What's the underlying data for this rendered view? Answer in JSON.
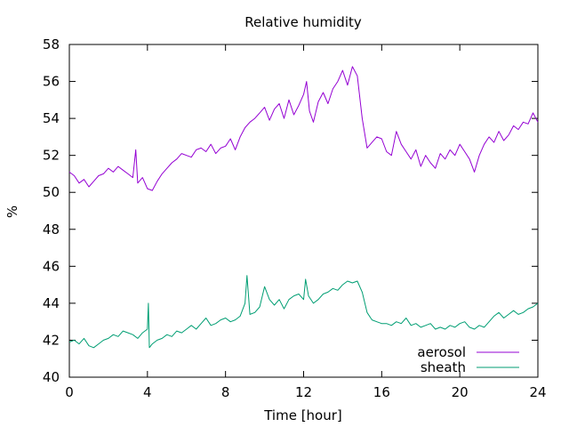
{
  "chart_data": {
    "type": "line",
    "title": "Relative humidity",
    "xlabel": "Time [hour]",
    "ylabel": "%",
    "xlim": [
      0,
      24
    ],
    "ylim": [
      40,
      58
    ],
    "x_ticks": [
      0,
      4,
      8,
      12,
      16,
      20,
      24
    ],
    "y_ticks": [
      40,
      42,
      44,
      46,
      48,
      50,
      52,
      54,
      56,
      58
    ],
    "grid": false,
    "legend_position": "bottom-right",
    "series": [
      {
        "name": "aerosol",
        "color": "#9400d3",
        "points": [
          [
            0.0,
            51.1
          ],
          [
            0.25,
            50.9
          ],
          [
            0.5,
            50.5
          ],
          [
            0.75,
            50.7
          ],
          [
            1.0,
            50.3
          ],
          [
            1.25,
            50.6
          ],
          [
            1.5,
            50.9
          ],
          [
            1.75,
            51.0
          ],
          [
            2.0,
            51.3
          ],
          [
            2.25,
            51.1
          ],
          [
            2.5,
            51.4
          ],
          [
            2.75,
            51.2
          ],
          [
            3.0,
            51.0
          ],
          [
            3.25,
            50.8
          ],
          [
            3.4,
            52.3
          ],
          [
            3.5,
            50.5
          ],
          [
            3.75,
            50.8
          ],
          [
            4.0,
            50.2
          ],
          [
            4.25,
            50.1
          ],
          [
            4.5,
            50.6
          ],
          [
            4.75,
            51.0
          ],
          [
            5.0,
            51.3
          ],
          [
            5.25,
            51.6
          ],
          [
            5.5,
            51.8
          ],
          [
            5.75,
            52.1
          ],
          [
            6.0,
            52.0
          ],
          [
            6.25,
            51.9
          ],
          [
            6.5,
            52.3
          ],
          [
            6.75,
            52.4
          ],
          [
            7.0,
            52.2
          ],
          [
            7.25,
            52.6
          ],
          [
            7.5,
            52.1
          ],
          [
            7.75,
            52.4
          ],
          [
            8.0,
            52.5
          ],
          [
            8.25,
            52.9
          ],
          [
            8.5,
            52.3
          ],
          [
            8.75,
            53.0
          ],
          [
            9.0,
            53.5
          ],
          [
            9.25,
            53.8
          ],
          [
            9.5,
            54.0
          ],
          [
            9.75,
            54.3
          ],
          [
            10.0,
            54.6
          ],
          [
            10.25,
            53.9
          ],
          [
            10.5,
            54.5
          ],
          [
            10.75,
            54.8
          ],
          [
            11.0,
            54.0
          ],
          [
            11.25,
            55.0
          ],
          [
            11.5,
            54.2
          ],
          [
            11.75,
            54.7
          ],
          [
            12.0,
            55.3
          ],
          [
            12.15,
            56.0
          ],
          [
            12.3,
            54.4
          ],
          [
            12.5,
            53.8
          ],
          [
            12.75,
            54.9
          ],
          [
            13.0,
            55.4
          ],
          [
            13.25,
            54.8
          ],
          [
            13.5,
            55.6
          ],
          [
            13.75,
            56.0
          ],
          [
            14.0,
            56.6
          ],
          [
            14.25,
            55.8
          ],
          [
            14.5,
            56.8
          ],
          [
            14.75,
            56.3
          ],
          [
            15.0,
            54.0
          ],
          [
            15.25,
            52.4
          ],
          [
            15.5,
            52.7
          ],
          [
            15.75,
            53.0
          ],
          [
            16.0,
            52.9
          ],
          [
            16.25,
            52.2
          ],
          [
            16.5,
            52.0
          ],
          [
            16.75,
            53.3
          ],
          [
            17.0,
            52.6
          ],
          [
            17.25,
            52.2
          ],
          [
            17.5,
            51.8
          ],
          [
            17.75,
            52.3
          ],
          [
            18.0,
            51.4
          ],
          [
            18.25,
            52.0
          ],
          [
            18.5,
            51.6
          ],
          [
            18.75,
            51.3
          ],
          [
            19.0,
            52.1
          ],
          [
            19.25,
            51.8
          ],
          [
            19.5,
            52.3
          ],
          [
            19.75,
            52.0
          ],
          [
            20.0,
            52.6
          ],
          [
            20.25,
            52.2
          ],
          [
            20.5,
            51.8
          ],
          [
            20.75,
            51.1
          ],
          [
            21.0,
            52.0
          ],
          [
            21.25,
            52.6
          ],
          [
            21.5,
            53.0
          ],
          [
            21.75,
            52.7
          ],
          [
            22.0,
            53.3
          ],
          [
            22.25,
            52.8
          ],
          [
            22.5,
            53.1
          ],
          [
            22.75,
            53.6
          ],
          [
            23.0,
            53.4
          ],
          [
            23.25,
            53.8
          ],
          [
            23.5,
            53.7
          ],
          [
            23.75,
            54.3
          ],
          [
            24.0,
            53.8
          ]
        ]
      },
      {
        "name": "sheath",
        "color": "#009e73",
        "points": [
          [
            0.0,
            41.9
          ],
          [
            0.25,
            42.0
          ],
          [
            0.5,
            41.8
          ],
          [
            0.75,
            42.1
          ],
          [
            1.0,
            41.7
          ],
          [
            1.25,
            41.6
          ],
          [
            1.5,
            41.8
          ],
          [
            1.75,
            42.0
          ],
          [
            2.0,
            42.1
          ],
          [
            2.25,
            42.3
          ],
          [
            2.5,
            42.2
          ],
          [
            2.75,
            42.5
          ],
          [
            3.0,
            42.4
          ],
          [
            3.25,
            42.3
          ],
          [
            3.5,
            42.1
          ],
          [
            3.75,
            42.4
          ],
          [
            4.0,
            42.6
          ],
          [
            4.05,
            44.0
          ],
          [
            4.1,
            41.6
          ],
          [
            4.25,
            41.8
          ],
          [
            4.5,
            42.0
          ],
          [
            4.75,
            42.1
          ],
          [
            5.0,
            42.3
          ],
          [
            5.25,
            42.2
          ],
          [
            5.5,
            42.5
          ],
          [
            5.75,
            42.4
          ],
          [
            6.0,
            42.6
          ],
          [
            6.25,
            42.8
          ],
          [
            6.5,
            42.6
          ],
          [
            6.75,
            42.9
          ],
          [
            7.0,
            43.2
          ],
          [
            7.25,
            42.8
          ],
          [
            7.5,
            42.9
          ],
          [
            7.75,
            43.1
          ],
          [
            8.0,
            43.2
          ],
          [
            8.25,
            43.0
          ],
          [
            8.5,
            43.1
          ],
          [
            8.75,
            43.3
          ],
          [
            9.0,
            44.0
          ],
          [
            9.1,
            45.5
          ],
          [
            9.25,
            43.4
          ],
          [
            9.5,
            43.5
          ],
          [
            9.75,
            43.8
          ],
          [
            10.0,
            44.9
          ],
          [
            10.25,
            44.2
          ],
          [
            10.5,
            43.9
          ],
          [
            10.75,
            44.2
          ],
          [
            11.0,
            43.7
          ],
          [
            11.25,
            44.2
          ],
          [
            11.5,
            44.4
          ],
          [
            11.75,
            44.5
          ],
          [
            12.0,
            44.2
          ],
          [
            12.1,
            45.3
          ],
          [
            12.25,
            44.4
          ],
          [
            12.5,
            44.0
          ],
          [
            12.75,
            44.2
          ],
          [
            13.0,
            44.5
          ],
          [
            13.25,
            44.6
          ],
          [
            13.5,
            44.8
          ],
          [
            13.75,
            44.7
          ],
          [
            14.0,
            45.0
          ],
          [
            14.25,
            45.2
          ],
          [
            14.5,
            45.1
          ],
          [
            14.75,
            45.2
          ],
          [
            15.0,
            44.6
          ],
          [
            15.25,
            43.5
          ],
          [
            15.5,
            43.1
          ],
          [
            15.75,
            43.0
          ],
          [
            16.0,
            42.9
          ],
          [
            16.25,
            42.9
          ],
          [
            16.5,
            42.8
          ],
          [
            16.75,
            43.0
          ],
          [
            17.0,
            42.9
          ],
          [
            17.25,
            43.2
          ],
          [
            17.5,
            42.8
          ],
          [
            17.75,
            42.9
          ],
          [
            18.0,
            42.7
          ],
          [
            18.25,
            42.8
          ],
          [
            18.5,
            42.9
          ],
          [
            18.75,
            42.6
          ],
          [
            19.0,
            42.7
          ],
          [
            19.25,
            42.6
          ],
          [
            19.5,
            42.8
          ],
          [
            19.75,
            42.7
          ],
          [
            20.0,
            42.9
          ],
          [
            20.25,
            43.0
          ],
          [
            20.5,
            42.7
          ],
          [
            20.75,
            42.6
          ],
          [
            21.0,
            42.8
          ],
          [
            21.25,
            42.7
          ],
          [
            21.5,
            43.0
          ],
          [
            21.75,
            43.3
          ],
          [
            22.0,
            43.5
          ],
          [
            22.25,
            43.2
          ],
          [
            22.5,
            43.4
          ],
          [
            22.75,
            43.6
          ],
          [
            23.0,
            43.4
          ],
          [
            23.25,
            43.5
          ],
          [
            23.5,
            43.7
          ],
          [
            23.75,
            43.8
          ],
          [
            24.0,
            44.0
          ]
        ]
      }
    ]
  }
}
